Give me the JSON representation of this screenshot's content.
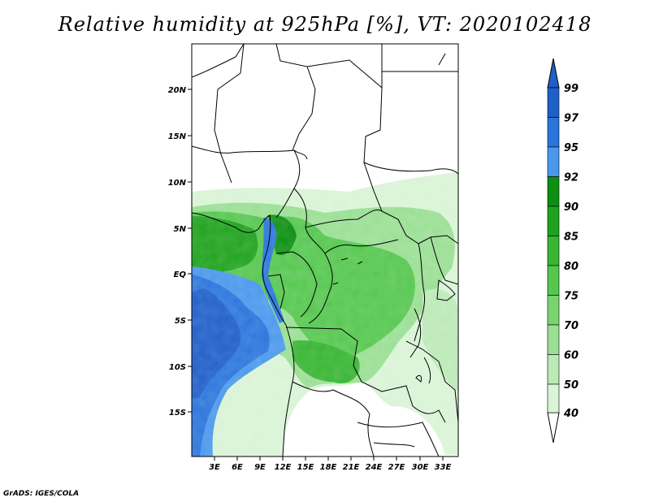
{
  "title": "Relative humidity at 925hPa [%], VT: 2020102418",
  "credit": "GrADS: IGES/COLA",
  "map": {
    "region": "Central Africa",
    "lat_labels": [
      "20N",
      "15N",
      "10N",
      "5N",
      "EQ",
      "5S",
      "10S",
      "15S"
    ],
    "lon_labels": [
      "3E",
      "6E",
      "9E",
      "12E",
      "15E",
      "18E",
      "21E",
      "24E",
      "27E",
      "30E",
      "33E"
    ]
  },
  "colorbar": {
    "levels": [
      "99",
      "97",
      "95",
      "92",
      "90",
      "85",
      "80",
      "75",
      "70",
      "60",
      "50",
      "40"
    ],
    "colors": [
      "#1f5fc8",
      "#2a75dc",
      "#4a98ec",
      "#0c8f12",
      "#1fa21d",
      "#37b533",
      "#55c74f",
      "#78d471",
      "#9adf94",
      "#bce9b7",
      "#d9f4d6",
      "#f1fcf0"
    ]
  }
}
